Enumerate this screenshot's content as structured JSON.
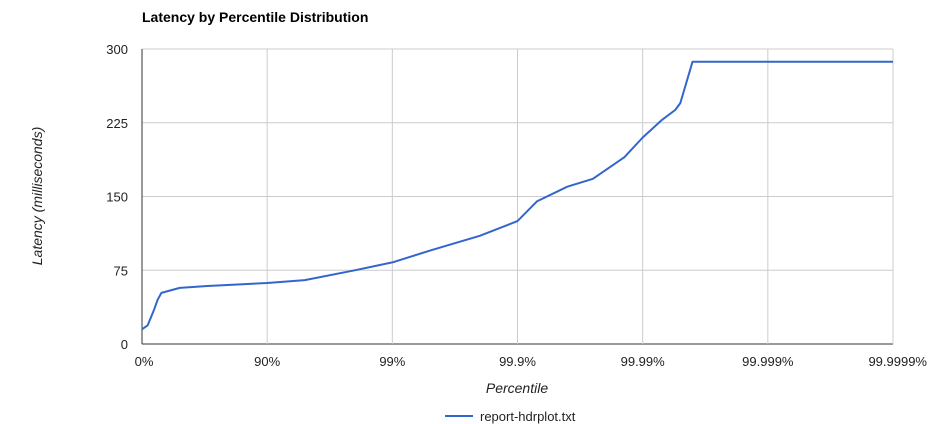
{
  "chart_data": {
    "type": "line",
    "title": "Latency by Percentile Distribution",
    "xlabel": "Percentile",
    "ylabel": "Latency (milliseconds)",
    "x_scale": "log-inverse (1/(1-p))",
    "x_tick_labels": [
      "0%",
      "90%",
      "99%",
      "99.9%",
      "99.99%",
      "99.999%",
      "99.9999%"
    ],
    "ylim": [
      0,
      300
    ],
    "y_ticks": [
      0,
      75,
      150,
      225,
      300
    ],
    "grid": true,
    "legend_position": "bottom",
    "line_color": "#3366cc",
    "series": [
      {
        "name": "report-hdrplot.txt",
        "x": [
          0,
          0.1,
          0.2,
          0.25,
          0.3,
          0.5,
          0.7,
          0.9,
          0.95,
          0.98,
          0.99,
          0.995,
          0.998,
          0.999,
          0.9993,
          0.9996,
          0.99975,
          0.99986,
          0.9999,
          0.99993,
          0.999945,
          0.99995,
          0.99996,
          0.99997,
          0.999999
        ],
        "values": [
          15,
          19,
          35,
          45,
          52,
          57,
          59,
          62,
          65,
          75,
          83,
          95,
          110,
          125,
          145,
          160,
          168,
          190,
          210,
          228,
          238,
          245,
          287,
          287,
          287
        ]
      }
    ]
  }
}
